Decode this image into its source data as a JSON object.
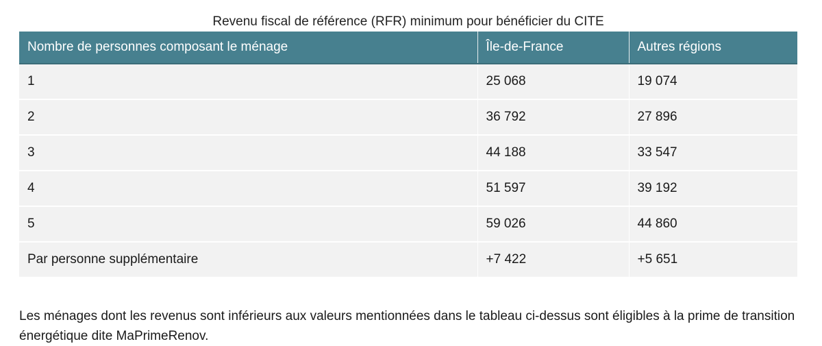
{
  "caption": "Revenu fiscal de référence (RFR) minimum pour bénéficier du CITE",
  "table": {
    "headers": [
      "Nombre de personnes composant le ménage",
      "Île-de-France",
      "Autres régions"
    ],
    "rows": [
      [
        "1",
        "25 068",
        "19 074"
      ],
      [
        "2",
        "36 792",
        "27 896"
      ],
      [
        "3",
        "44 188",
        "33 547"
      ],
      [
        "4",
        "51 597",
        "39 192"
      ],
      [
        "5",
        "59 026",
        "44 860"
      ],
      [
        "Par personne supplémentaire",
        "+7 422",
        "+5 651"
      ]
    ]
  },
  "note": "Les ménages dont les revenus sont inférieurs aux valeurs mentionnées dans le tableau ci-dessus sont éligibles à la prime de transition énergétique dite MaPrimeRenov.",
  "colors": {
    "header_bg": "#47808f",
    "row_bg": "#f2f2f2"
  }
}
